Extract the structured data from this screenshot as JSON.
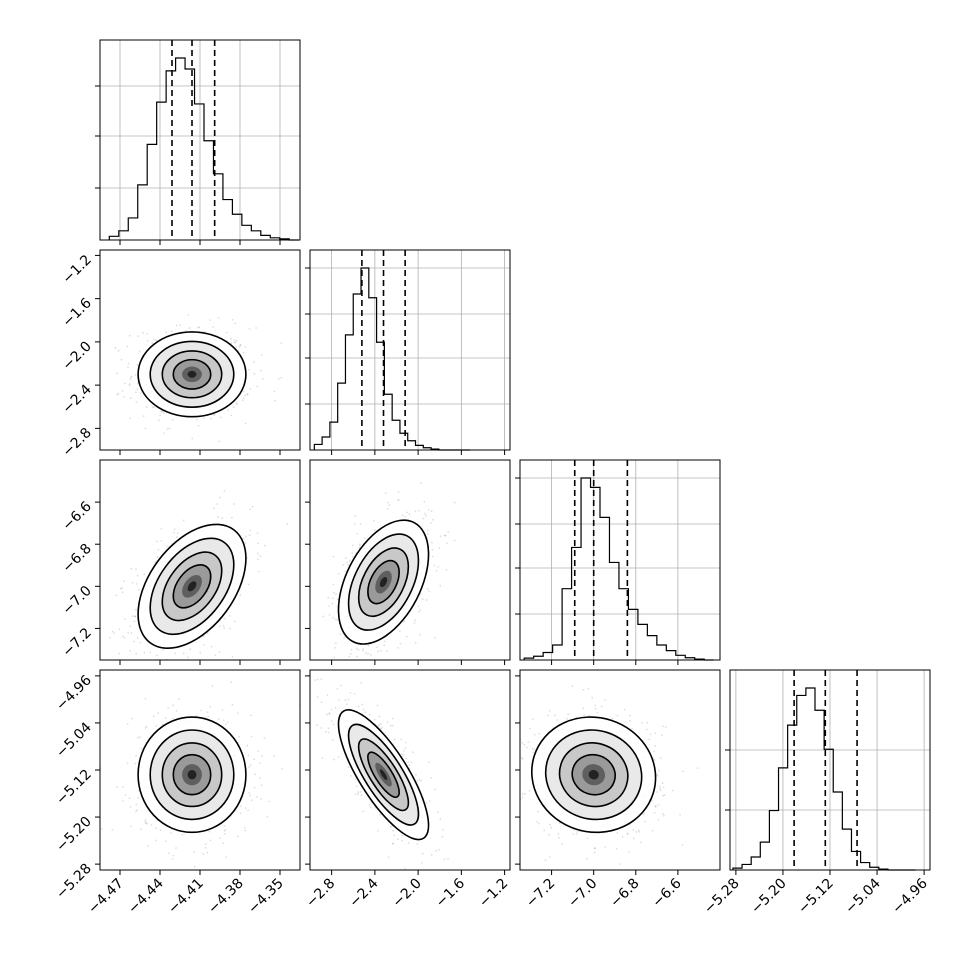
{
  "chart_data": {
    "type": "corner",
    "n_params": 4,
    "grid": true,
    "params": [
      {
        "range": [
          -4.485,
          -4.335
        ],
        "ticks": [
          -4.47,
          -4.44,
          -4.41,
          -4.38,
          -4.35
        ],
        "tick_labels": [
          "−4.47",
          "−4.44",
          "−4.41",
          "−4.38",
          "−4.35"
        ],
        "quantiles": [
          -4.431,
          -4.416,
          -4.399
        ],
        "hist": {
          "edges_start": -4.478,
          "bin_width": 0.0071,
          "counts": [
            0.02,
            0.05,
            0.12,
            0.3,
            0.52,
            0.75,
            0.92,
            0.99,
            0.93,
            0.74,
            0.54,
            0.36,
            0.22,
            0.14,
            0.08,
            0.05,
            0.025,
            0.012,
            0.006,
            0.0
          ]
        },
        "yticks_frac": [
          0.26,
          0.52,
          0.77
        ]
      },
      {
        "range": [
          -3.0,
          -1.15
        ],
        "ticks": [
          -2.8,
          -2.4,
          -2.0,
          -1.6,
          -1.2
        ],
        "tick_labels": [
          "−2.8",
          "−2.4",
          "−2.0",
          "−1.6",
          "−1.2"
        ],
        "quantiles": [
          -2.52,
          -2.32,
          -2.12
        ],
        "hist": {
          "edges_start": -2.96,
          "bin_width": 0.072,
          "counts": [
            0.03,
            0.07,
            0.15,
            0.36,
            0.62,
            0.84,
            0.98,
            0.82,
            0.58,
            0.3,
            0.16,
            0.09,
            0.05,
            0.025,
            0.012,
            0.005,
            0.0,
            0.0,
            0.0,
            0.0
          ]
        },
        "yticks_frac": [
          0.23,
          0.46,
          0.68,
          0.91
        ]
      },
      {
        "range": [
          -7.35,
          -6.4
        ],
        "ticks": [
          -7.2,
          -7.0,
          -6.8,
          -6.6
        ],
        "tick_labels": [
          "−7.2",
          "−7.0",
          "−6.8",
          "−6.6"
        ],
        "quantiles": [
          -7.09,
          -7.0,
          -6.84
        ],
        "hist": {
          "edges_start": -7.33,
          "bin_width": 0.045,
          "counts": [
            0.01,
            0.02,
            0.04,
            0.08,
            0.38,
            0.6,
            0.97,
            0.92,
            0.76,
            0.52,
            0.38,
            0.27,
            0.19,
            0.13,
            0.08,
            0.05,
            0.025,
            0.012,
            0.005,
            0.0
          ]
        },
        "yticks_frac": [
          0.23,
          0.46,
          0.68,
          0.91
        ]
      },
      {
        "range": [
          -5.29,
          -4.95
        ],
        "ticks": [
          -5.28,
          -5.2,
          -5.12,
          -5.04,
          -4.96
        ],
        "tick_labels": [
          "−5.28",
          "−5.20",
          "−5.12",
          "−5.04",
          "−4.96"
        ],
        "quantiles": [
          -5.181,
          -5.128,
          -5.074
        ],
        "hist": {
          "edges_start": -5.285,
          "bin_width": 0.0155,
          "counts": [
            0.01,
            0.03,
            0.07,
            0.15,
            0.32,
            0.55,
            0.78,
            0.94,
            0.98,
            0.86,
            0.65,
            0.42,
            0.22,
            0.1,
            0.04,
            0.015,
            0.005,
            0.0,
            0.0,
            0.0
          ]
        },
        "yticks_frac": [
          0.3,
          0.6
        ]
      }
    ],
    "pairs": [
      {
        "row": 1,
        "col": 0,
        "mean": [
          -4.416,
          -2.3
        ],
        "sd": [
          0.0165,
          0.16
        ],
        "corr": 0.0
      },
      {
        "row": 2,
        "col": 0,
        "mean": [
          -4.416,
          -7.0
        ],
        "sd": [
          0.0165,
          0.12
        ],
        "corr": 0.45
      },
      {
        "row": 2,
        "col": 1,
        "mean": [
          -2.32,
          -6.98
        ],
        "sd": [
          0.17,
          0.12
        ],
        "corr": 0.45
      },
      {
        "row": 3,
        "col": 0,
        "mean": [
          -4.416,
          -5.128
        ],
        "sd": [
          0.0165,
          0.04
        ],
        "corr": 0.0
      },
      {
        "row": 3,
        "col": 1,
        "mean": [
          -2.32,
          -5.128
        ],
        "sd": [
          0.17,
          0.045
        ],
        "corr": -0.78
      },
      {
        "row": 3,
        "col": 2,
        "mean": [
          -7.0,
          -5.128
        ],
        "sd": [
          0.12,
          0.04
        ],
        "corr": -0.05
      }
    ]
  }
}
